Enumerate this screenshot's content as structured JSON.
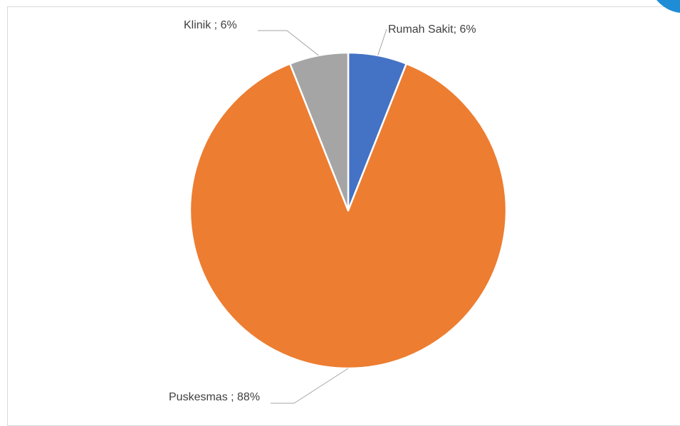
{
  "chart_data": {
    "type": "pie",
    "slices": [
      {
        "label": "Rumah Sakit",
        "value": 6,
        "label_text": "Rumah Sakit; 6%",
        "color": "#4472c4"
      },
      {
        "label": "Puskesmas",
        "value": 88,
        "label_text": "Puskesmas ; 88%",
        "color": "#ed7d31"
      },
      {
        "label": "Klinik",
        "value": 6,
        "label_text": "Klinik ; 6%",
        "color": "#a5a5a5"
      }
    ],
    "start_angle": "12 o'clock",
    "direction": "clockwise",
    "legend": "none"
  },
  "corner_decoration_color": "#1f8dd6"
}
